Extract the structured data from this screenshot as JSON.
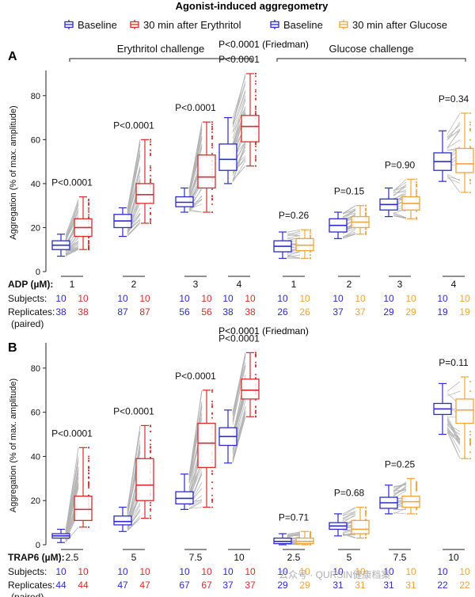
{
  "figure_title": "Agonist-induced aggregometry",
  "legend": [
    {
      "label": "Baseline",
      "color": "#2b2bd1"
    },
    {
      "label": "30 min after Erythritol",
      "color": "#d92b2b"
    },
    {
      "label": "Baseline",
      "color": "#2b2bd1"
    },
    {
      "label": "30 min after Glucose",
      "color": "#f2a33a"
    }
  ],
  "colors": {
    "baseline": "#2b2bd1",
    "erythritol": "#d92b2b",
    "glucose": "#f2a33a",
    "lines": "#b3b3b3"
  },
  "watermark": "公众号 · QURSIN健康档案",
  "chart_data": [
    {
      "type": "box",
      "panel": "A",
      "friedman": "P<0.0001 (Friedman)",
      "group_labels": [
        "Erythritol challenge",
        "Glucose challenge"
      ],
      "ylabel": "Aggregation (% of max. amplitude)",
      "ylim": [
        0,
        90
      ],
      "yticks": [
        0,
        20,
        40,
        60,
        80
      ],
      "agonist_label": "ADP (µM):",
      "doses": [
        "1",
        "2",
        "3",
        "4",
        "1",
        "2",
        "3",
        "4"
      ],
      "pvalues": [
        "P<0.0001",
        "P<0.0001",
        "P<0.0001",
        "P<0.0001",
        "P=0.26",
        "P=0.15",
        "P=0.90",
        "P=0.34"
      ],
      "row_labels": {
        "subjects": "Subjects:",
        "replicates": "Replicates:",
        "paired": "(paired)"
      },
      "subjects": [
        [
          "10",
          "10"
        ],
        [
          "10",
          "10"
        ],
        [
          "10",
          "10"
        ],
        [
          "10",
          "10"
        ],
        [
          "10",
          "10"
        ],
        [
          "10",
          "10"
        ],
        [
          "10",
          "10"
        ],
        [
          "10",
          "10"
        ]
      ],
      "replicates": [
        [
          "38",
          "38"
        ],
        [
          "87",
          "87"
        ],
        [
          "56",
          "56"
        ],
        [
          "38",
          "38"
        ],
        [
          "26",
          "26"
        ],
        [
          "37",
          "37"
        ],
        [
          "29",
          "29"
        ],
        [
          "19",
          "19"
        ]
      ],
      "series": [
        {
          "name": "Baseline",
          "group": "Erythritol challenge",
          "boxes": [
            [
              7,
              10,
              12,
              14,
              17
            ],
            [
              16,
              20,
              23,
              26,
              29
            ],
            [
              27,
              29.5,
              31.5,
              34,
              38
            ],
            [
              40,
              46,
              51,
              58,
              70
            ],
            [
              6,
              9,
              11.5,
              14,
              18
            ],
            [
              15,
              18,
              21,
              24,
              27
            ],
            [
              25,
              28,
              30.5,
              33,
              38
            ],
            [
              41,
              46,
              50,
              54,
              64
            ]
          ]
        },
        {
          "name": "30 min after Erythritol",
          "group": "Erythritol challenge",
          "boxes": [
            [
              10,
              16,
              20,
              24,
              34
            ],
            [
              22,
              31,
              35,
              40,
              60
            ],
            [
              27,
              38,
              43,
              53,
              68
            ],
            [
              48,
              59,
              66,
              71,
              90
            ],
            null,
            null,
            null,
            null
          ]
        },
        {
          "name": "30 min after Glucose",
          "group": "Glucose challenge",
          "boxes": [
            null,
            null,
            null,
            null,
            [
              6,
              9.5,
              12,
              15,
              19
            ],
            [
              17,
              20,
              22.5,
              25,
              30
            ],
            [
              24,
              28,
              31,
              34,
              42
            ],
            [
              36,
              45,
              49,
              56,
              72
            ]
          ]
        }
      ]
    },
    {
      "type": "box",
      "panel": "B",
      "friedman": "P<0.0001 (Friedman)",
      "group_labels": [],
      "ylabel": "Aggregation (% of max. amplitude)",
      "ylim": [
        0,
        90
      ],
      "yticks": [
        0,
        20,
        40,
        60,
        80
      ],
      "agonist_label": "TRAP6 (µM):",
      "doses": [
        "2.5",
        "5",
        "7.5",
        "10",
        "2.5",
        "5",
        "7.5",
        "10"
      ],
      "pvalues": [
        "P<0.0001",
        "P<0.0001",
        "P<0.0001",
        "P<0.0001",
        "P=0.71",
        "P=0.68",
        "P=0.25",
        "P=0.11"
      ],
      "row_labels": {
        "subjects": "Subjects:",
        "replicates": "Replicates:",
        "paired": "(paired)"
      },
      "subjects": [
        [
          "10",
          "10"
        ],
        [
          "10",
          "10"
        ],
        [
          "10",
          "10"
        ],
        [
          "10",
          "10"
        ],
        [
          "10",
          "10"
        ],
        [
          "10",
          "10"
        ],
        [
          "10",
          "10"
        ],
        [
          "10",
          "10"
        ]
      ],
      "replicates": [
        [
          "44",
          "44"
        ],
        [
          "47",
          "47"
        ],
        [
          "67",
          "67"
        ],
        [
          "37",
          "37"
        ],
        [
          "29",
          "29"
        ],
        [
          "31",
          "31"
        ],
        [
          "31",
          "31"
        ],
        [
          "22",
          "22"
        ]
      ],
      "series": [
        {
          "name": "Baseline",
          "group": "Erythritol challenge",
          "boxes": [
            [
              1,
              3,
              4,
              5,
              7
            ],
            [
              6,
              9,
              10.5,
              13,
              17
            ],
            [
              16,
              18.5,
              21,
              24,
              32
            ],
            [
              37,
              45,
              49,
              53,
              61
            ],
            [
              0,
              0.5,
              1.5,
              3,
              5
            ],
            [
              4,
              7,
              8.5,
              10,
              14
            ],
            [
              14,
              16.5,
              19,
              21.5,
              27
            ],
            [
              50,
              59,
              61.5,
              64,
              73
            ]
          ]
        },
        {
          "name": "30 min after Erythritol",
          "group": "Erythritol challenge",
          "boxes": [
            [
              8,
              11,
              16,
              22,
              44
            ],
            [
              12,
              20,
              27,
              39,
              54
            ],
            [
              17,
              35,
              46,
              55,
              70
            ],
            [
              58,
              66,
              70,
              75,
              87
            ],
            null,
            null,
            null,
            null
          ]
        },
        {
          "name": "30 min after Glucose",
          "group": "Glucose challenge",
          "boxes": [
            null,
            null,
            null,
            null,
            [
              0,
              0.5,
              1.5,
              3,
              6
            ],
            [
              3,
              5,
              7,
              11,
              17
            ],
            [
              14,
              17,
              19.5,
              22,
              30
            ],
            [
              39,
              55,
              61,
              66,
              76
            ]
          ]
        }
      ]
    }
  ]
}
